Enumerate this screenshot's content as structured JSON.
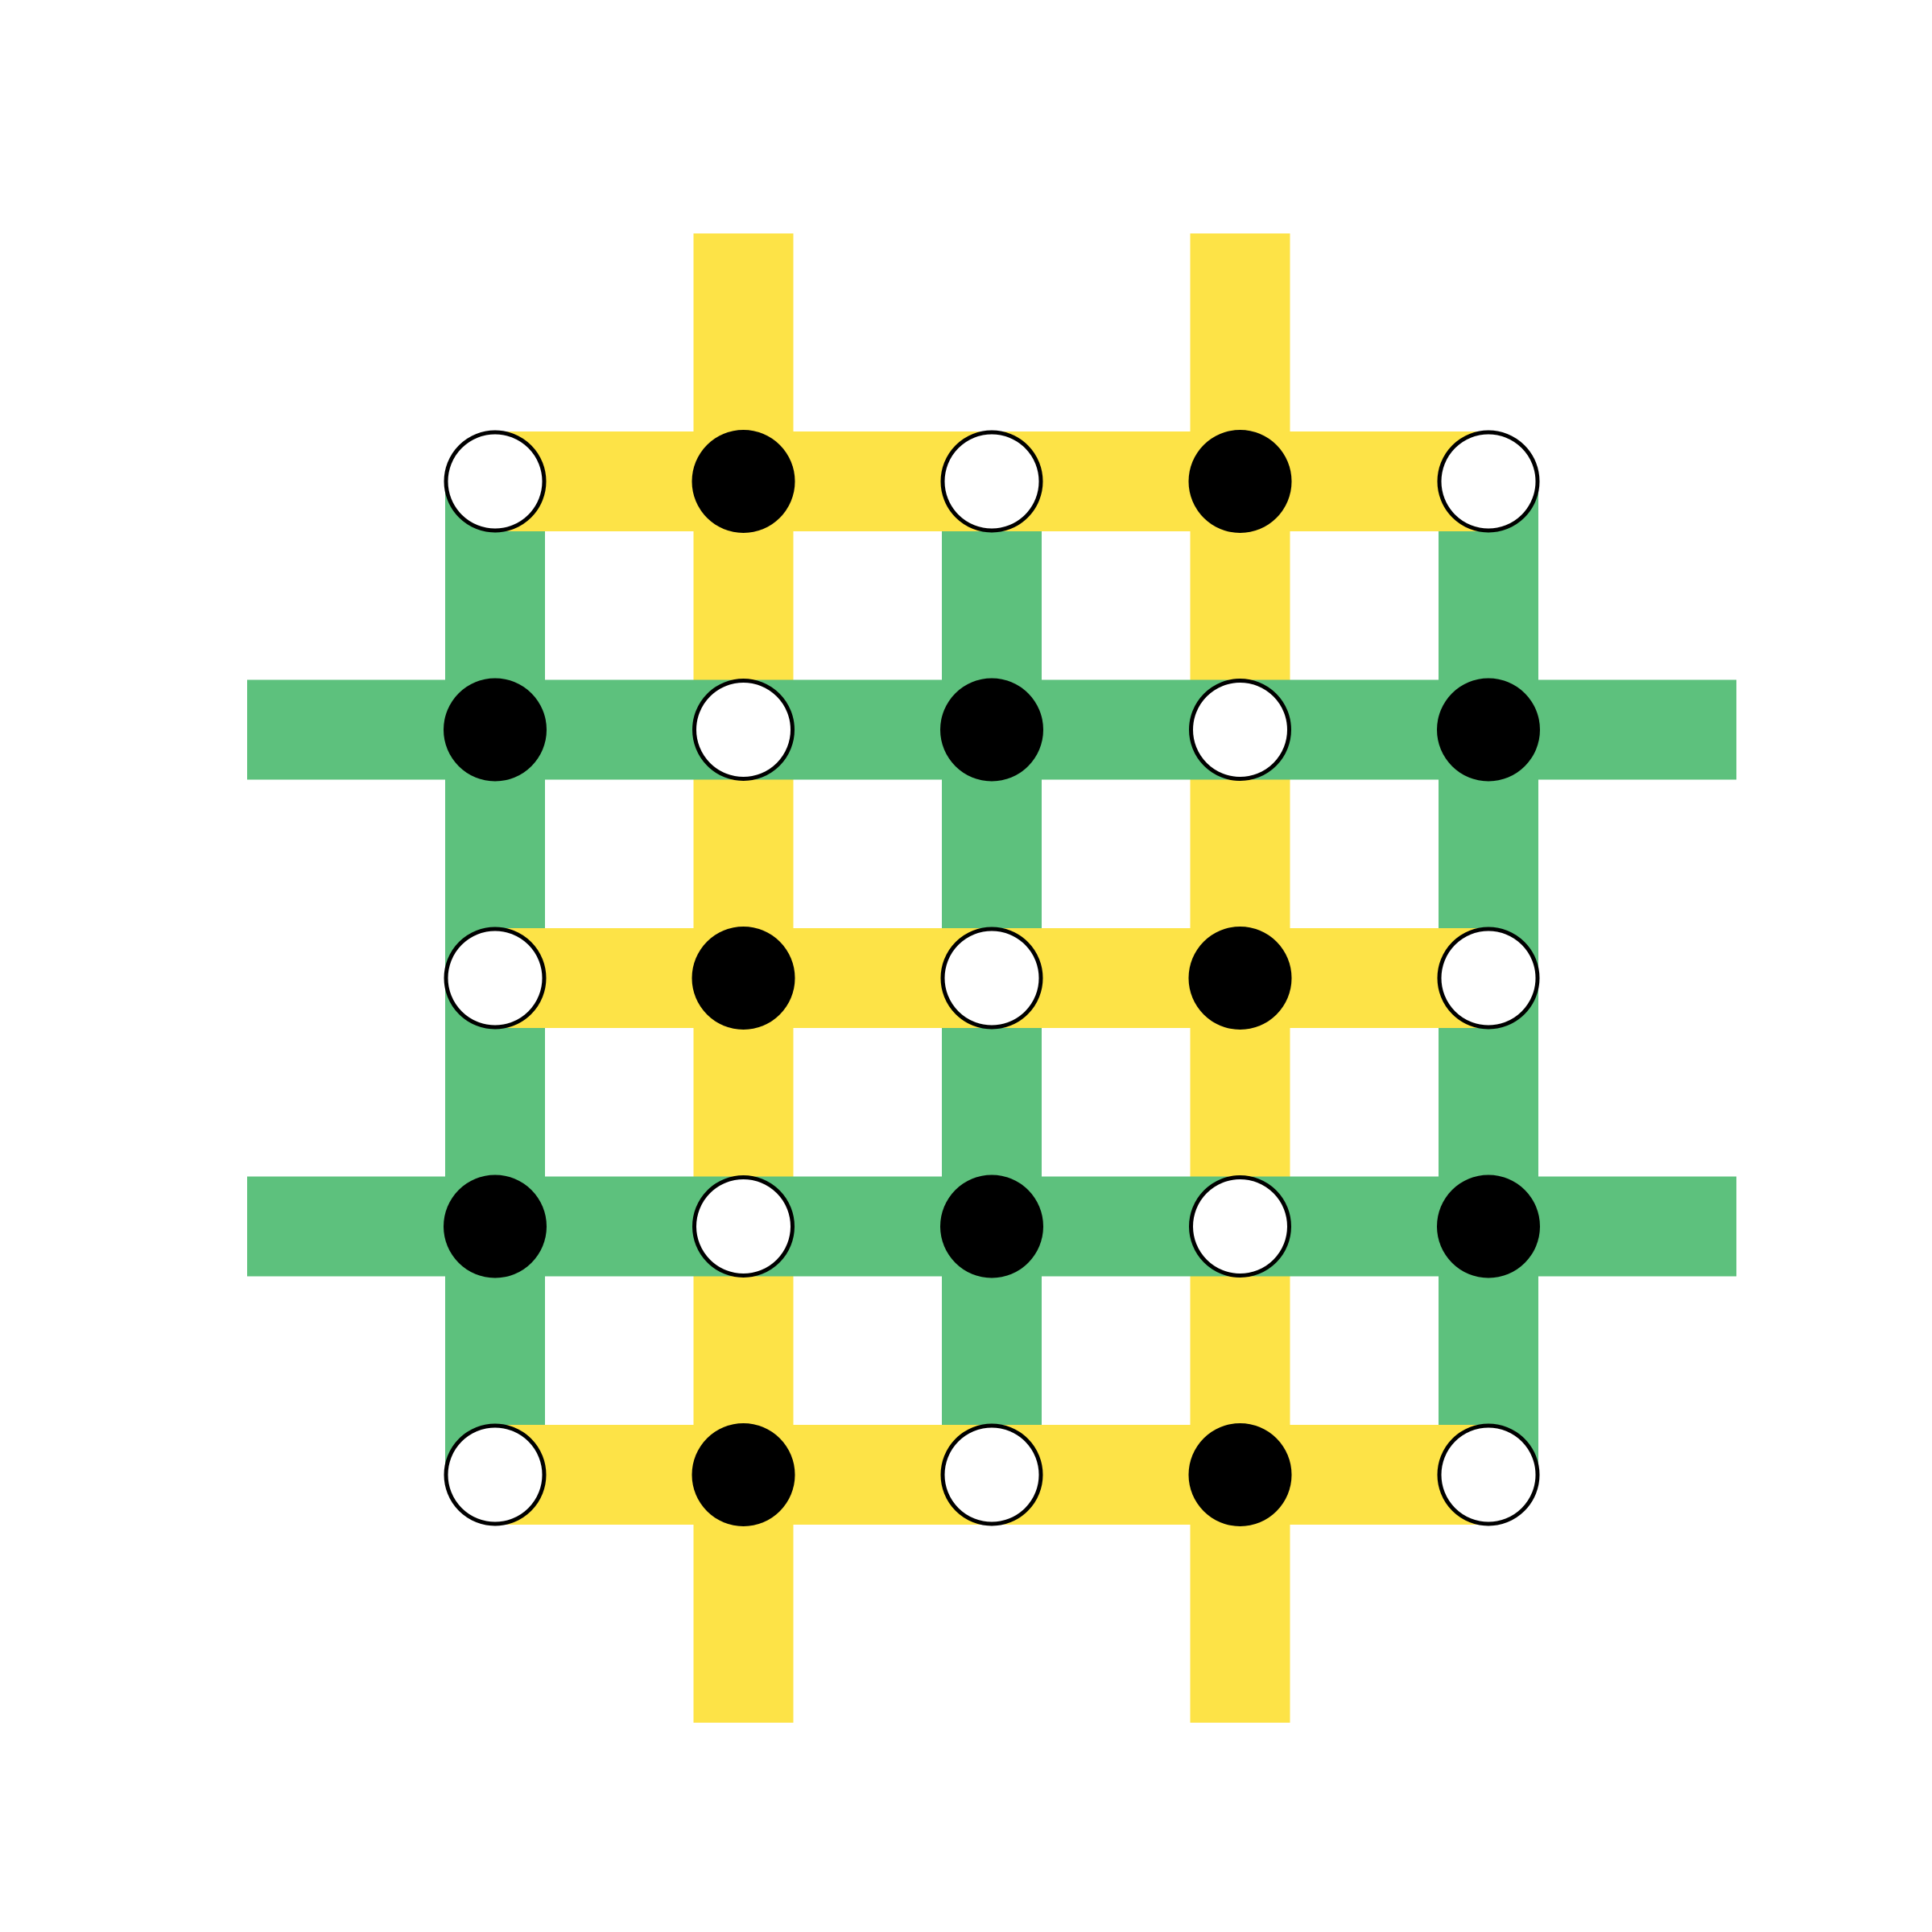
{
  "colors": {
    "green": "#5dc17d",
    "yellow": "#fde347",
    "filled_node": "#000000",
    "open_node_fill": "#ffffff",
    "node_stroke": "#000000",
    "background": "#ffffff"
  },
  "lattice": {
    "rows": 5,
    "cols": 5,
    "nodes": [
      [
        "open",
        "filled",
        "open",
        "filled",
        "open"
      ],
      [
        "filled",
        "open",
        "filled",
        "open",
        "filled"
      ],
      [
        "open",
        "filled",
        "open",
        "filled",
        "open"
      ],
      [
        "filled",
        "open",
        "filled",
        "open",
        "filled"
      ],
      [
        "open",
        "filled",
        "open",
        "filled",
        "open"
      ]
    ],
    "horizontal_bonds": [
      {
        "row": 0,
        "color": "yellow",
        "extends_beyond": false
      },
      {
        "row": 1,
        "color": "green",
        "extends_beyond": true
      },
      {
        "row": 2,
        "color": "yellow",
        "extends_beyond": false
      },
      {
        "row": 3,
        "color": "green",
        "extends_beyond": true
      },
      {
        "row": 4,
        "color": "yellow",
        "extends_beyond": false
      }
    ],
    "vertical_bonds": [
      {
        "col": 0,
        "color": "green",
        "extends_beyond": false
      },
      {
        "col": 1,
        "color": "yellow",
        "extends_beyond": true
      },
      {
        "col": 2,
        "color": "green",
        "extends_beyond": false
      },
      {
        "col": 3,
        "color": "yellow",
        "extends_beyond": true
      },
      {
        "col": 4,
        "color": "green",
        "extends_beyond": false
      }
    ]
  }
}
